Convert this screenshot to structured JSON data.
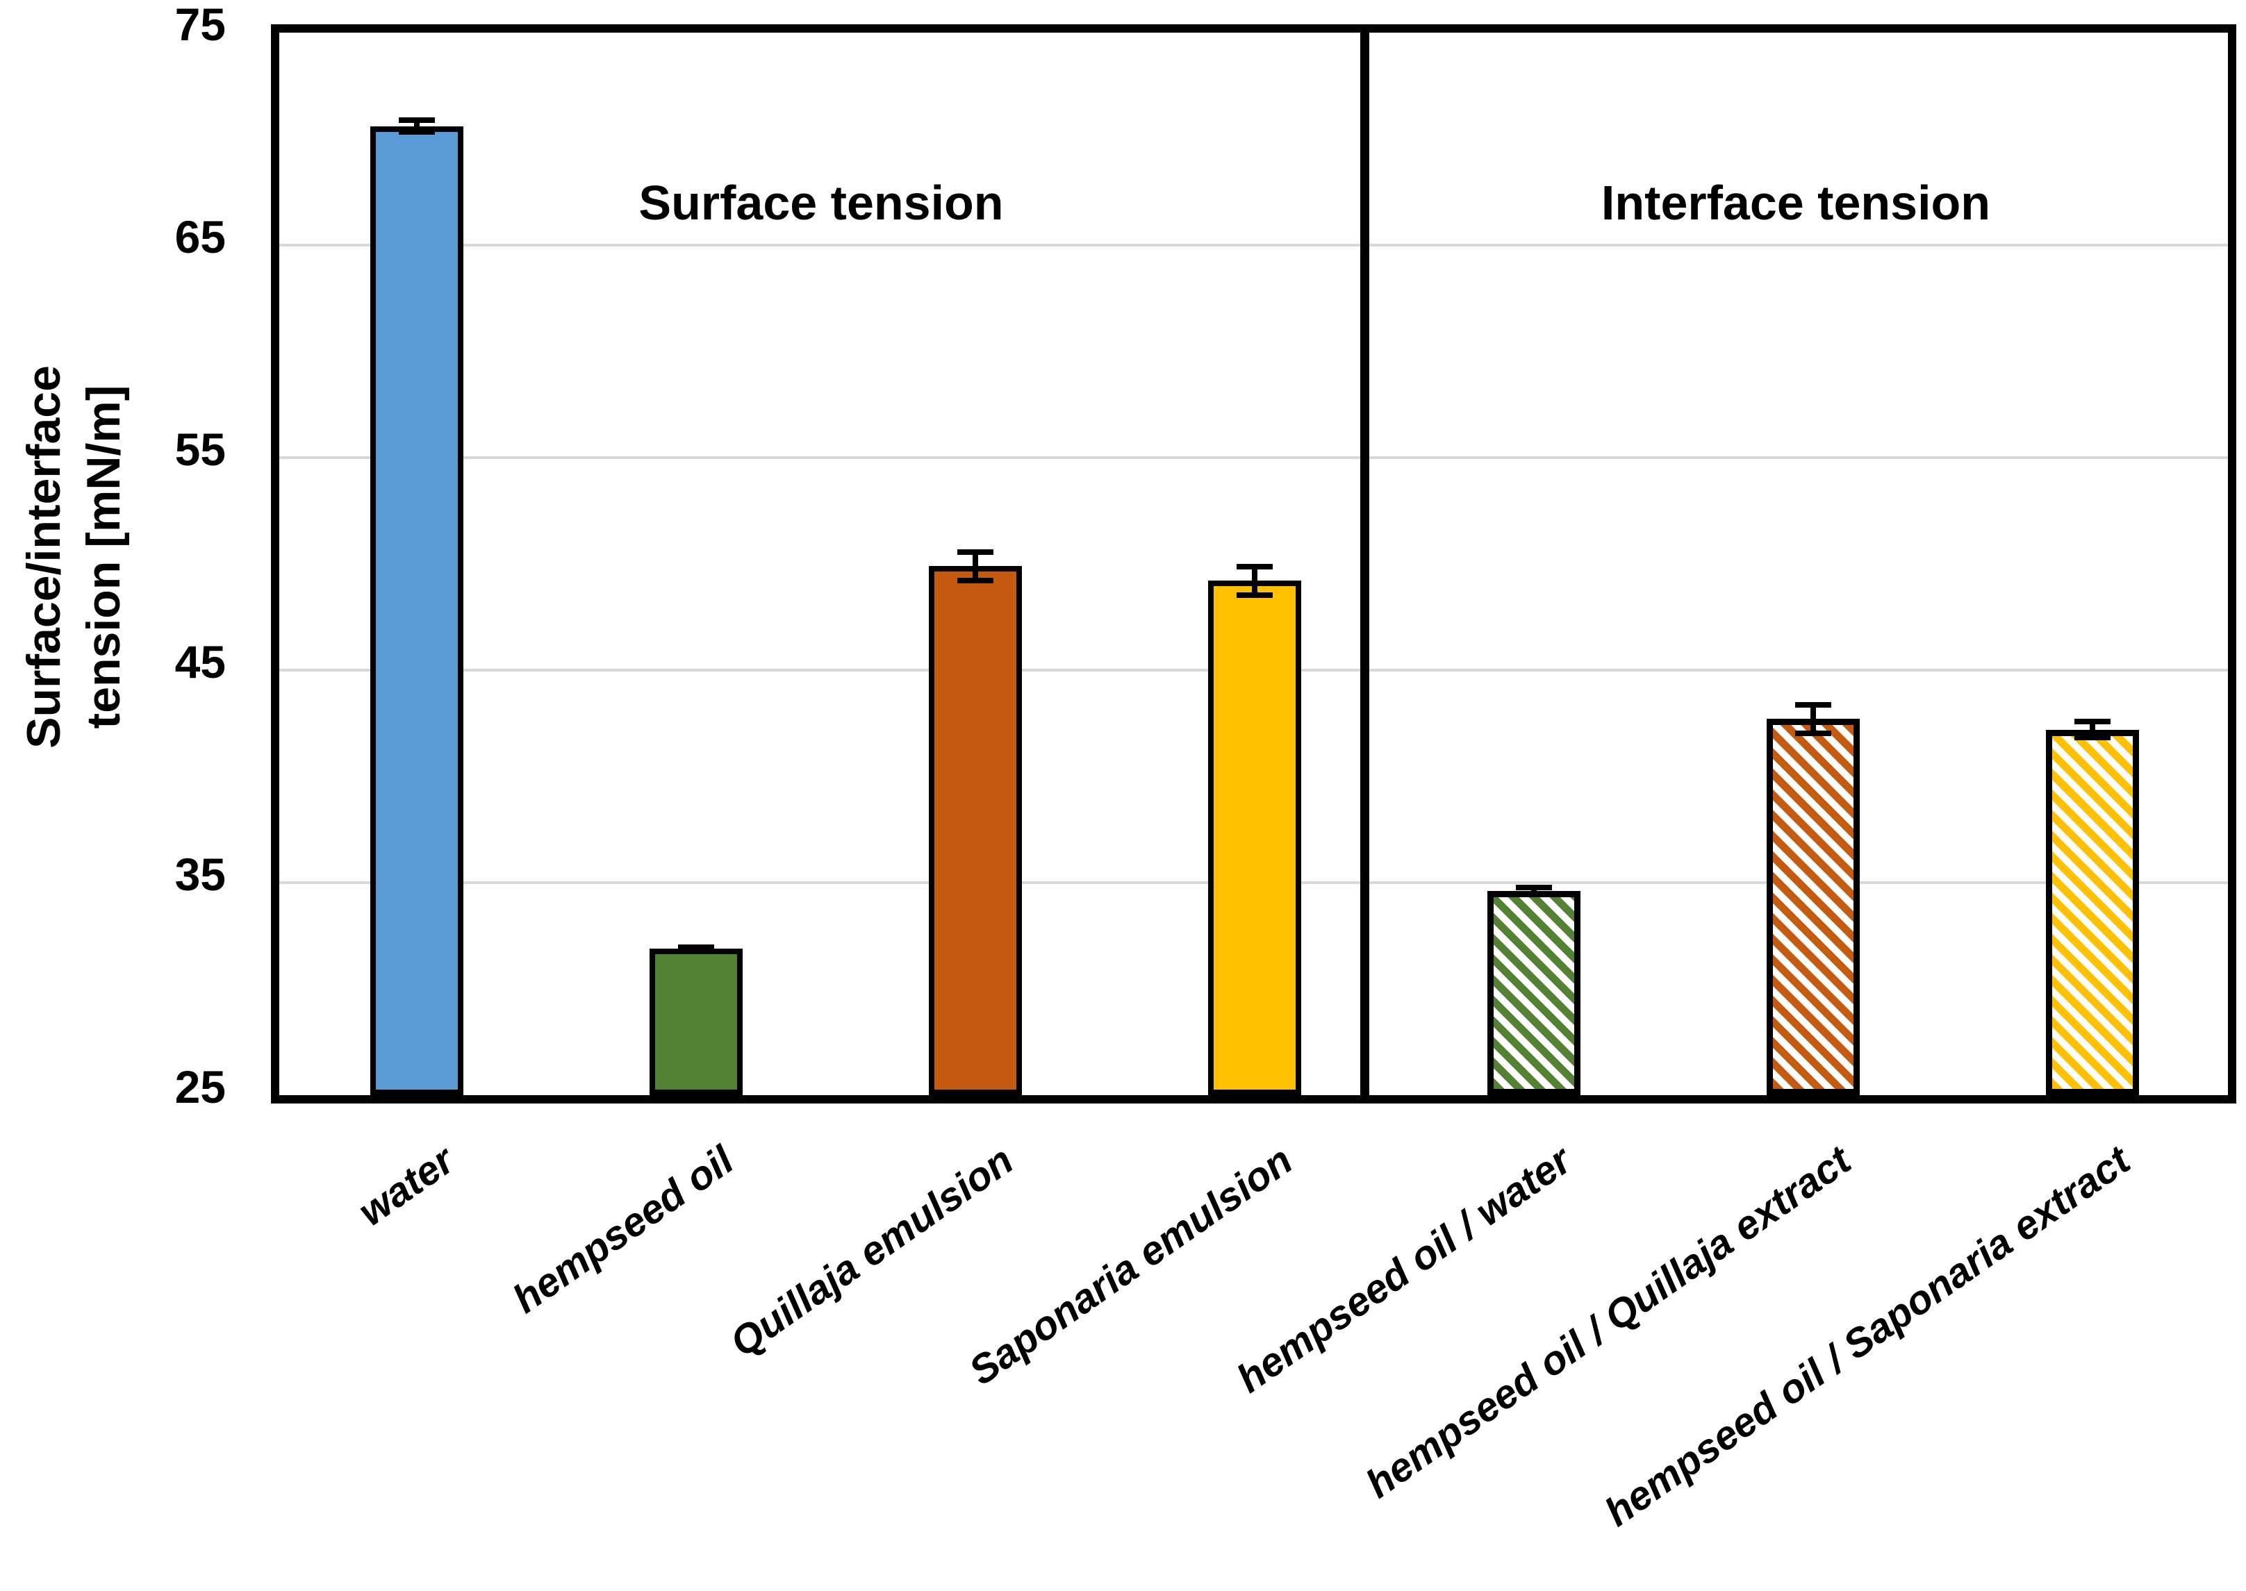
{
  "chart_data": {
    "type": "bar",
    "title": "",
    "ylabel_line1": "Surface/interface",
    "ylabel_line2": "tension [mN/m]",
    "ylim": [
      25,
      75
    ],
    "yticks": [
      75,
      65,
      55,
      45,
      35,
      25
    ],
    "gridlines": [
      65,
      55,
      45,
      35
    ],
    "grid_color": "#d9d9d9",
    "frame_color": "#000000",
    "legend_position": "none",
    "sections": [
      {
        "id": "surface",
        "label": "Surface tension"
      },
      {
        "id": "interface",
        "label": "Interface tension"
      }
    ],
    "bars": [
      {
        "category": "water",
        "value": 70.6,
        "error": 0.4,
        "color": "#5B9BD5",
        "pattern": "solid",
        "section": "surface"
      },
      {
        "category": "hempseed oil",
        "value": 31.9,
        "error": 0.2,
        "color": "#548235",
        "pattern": "solid",
        "section": "surface"
      },
      {
        "category": "Quillaja emulsion",
        "value": 49.9,
        "error": 0.8,
        "color": "#C55A11",
        "pattern": "solid",
        "section": "surface"
      },
      {
        "category": "Saponaria emulsion",
        "value": 49.2,
        "error": 0.8,
        "color": "#FFC000",
        "pattern": "solid",
        "section": "surface"
      },
      {
        "category": "hempseed oil / water",
        "value": 34.6,
        "error": 0.3,
        "color": "#548235",
        "pattern": "hatched",
        "section": "interface"
      },
      {
        "category": "hempseed oil / Quillaja extract",
        "value": 42.7,
        "error": 0.8,
        "color": "#C55A11",
        "pattern": "hatched",
        "section": "interface"
      },
      {
        "category": "hempseed oil / Saponaria extract",
        "value": 42.2,
        "error": 0.5,
        "color": "#FFC000",
        "pattern": "hatched",
        "section": "interface"
      }
    ]
  }
}
